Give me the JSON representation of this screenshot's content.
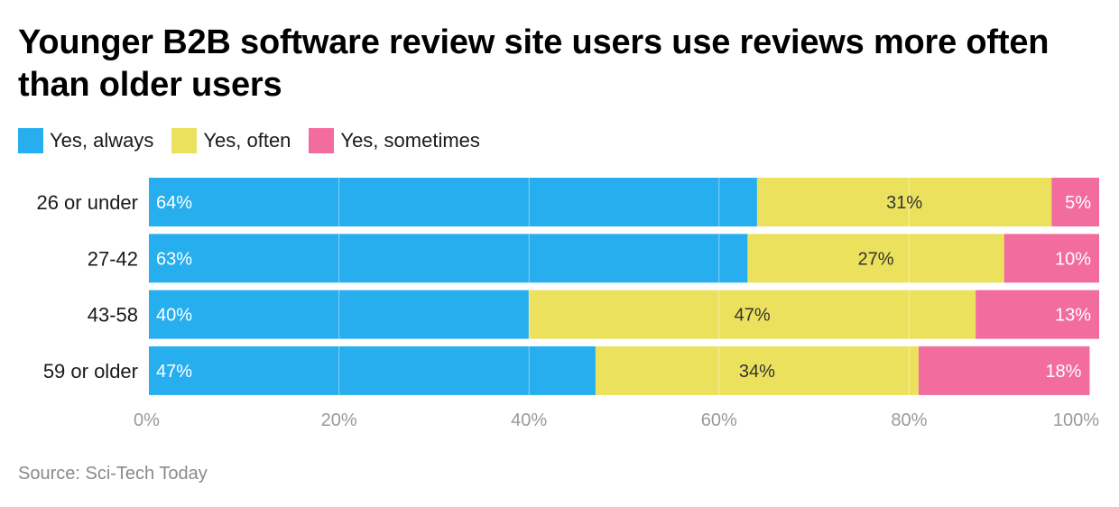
{
  "title": "Younger B2B software review site users use reviews more often than older users",
  "legend": [
    {
      "label": "Yes, always",
      "color": "#27aeef"
    },
    {
      "label": "Yes, often",
      "color": "#ece15d"
    },
    {
      "label": "Yes, sometimes",
      "color": "#f26c9d"
    }
  ],
  "source": "Source: Sci-Tech Today",
  "chart_data": {
    "type": "bar",
    "orientation": "horizontal",
    "stacked": true,
    "categories": [
      "26 or under",
      "27-42",
      "43-58",
      "59 or older"
    ],
    "series": [
      {
        "name": "Yes, always",
        "color": "#27aeef",
        "label_color": "#ffffff",
        "values": [
          64,
          63,
          40,
          47
        ],
        "labels": [
          "64%",
          "63%",
          "40%",
          "47%"
        ]
      },
      {
        "name": "Yes, often",
        "color": "#ece15d",
        "label_color": "#333333",
        "values": [
          31,
          27,
          47,
          34
        ],
        "labels": [
          "31%",
          "27%",
          "47%",
          "34%"
        ]
      },
      {
        "name": "Yes, sometimes",
        "color": "#f26c9d",
        "label_color": "#ffffff",
        "values": [
          5,
          10,
          13,
          18
        ],
        "labels": [
          "5%",
          "10%",
          "13%",
          "18%"
        ]
      }
    ],
    "xlim": [
      0,
      100
    ],
    "xticks": [
      0,
      20,
      40,
      60,
      80,
      100
    ],
    "xtick_labels": [
      "0%",
      "20%",
      "40%",
      "60%",
      "80%",
      "100%"
    ],
    "grid": true,
    "legend_position": "top-left"
  }
}
